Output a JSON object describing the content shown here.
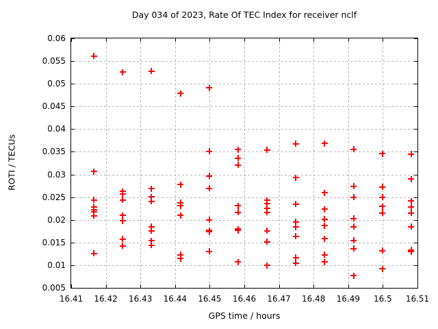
{
  "chart_data": {
    "type": "scatter",
    "title": "Day 034 of 2023, Rate Of TEC Index for receiver nclf",
    "xlabel": "GPS time / hours",
    "ylabel": "ROTI / TECUs",
    "xlim": [
      16.41,
      16.51
    ],
    "ylim": [
      0.005,
      0.06
    ],
    "x_ticks": [
      "16.41",
      "16.42",
      "16.43",
      "16.44",
      "16.45",
      "16.46",
      "16.47",
      "16.48",
      "16.49",
      "16.5",
      "16.51"
    ],
    "y_ticks": [
      "0.005",
      "0.01",
      "0.015",
      "0.02",
      "0.025",
      "0.03",
      "0.035",
      "0.04",
      "0.045",
      "0.05",
      "0.055",
      "0.06"
    ],
    "grid": true,
    "legend": false,
    "marker": "plus",
    "marker_color": "#ff0000",
    "grid_color": "#b4b4b4",
    "axis_color": "#000000",
    "background_color": "#ffffff",
    "series_name": "ROTI",
    "points": [
      [
        16.4167,
        0.056
      ],
      [
        16.4167,
        0.0306
      ],
      [
        16.4167,
        0.0243
      ],
      [
        16.4167,
        0.0228
      ],
      [
        16.4167,
        0.0221
      ],
      [
        16.4167,
        0.0217
      ],
      [
        16.4167,
        0.0208
      ],
      [
        16.4167,
        0.0125
      ],
      [
        16.425,
        0.0525
      ],
      [
        16.425,
        0.0262
      ],
      [
        16.425,
        0.0257
      ],
      [
        16.425,
        0.0243
      ],
      [
        16.425,
        0.0209
      ],
      [
        16.425,
        0.0197
      ],
      [
        16.425,
        0.0157
      ],
      [
        16.425,
        0.0142
      ],
      [
        16.4333,
        0.0527
      ],
      [
        16.4333,
        0.0268
      ],
      [
        16.4333,
        0.025
      ],
      [
        16.4333,
        0.024
      ],
      [
        16.4333,
        0.0184
      ],
      [
        16.4333,
        0.0175
      ],
      [
        16.4333,
        0.0153
      ],
      [
        16.4333,
        0.0143
      ],
      [
        16.4417,
        0.0478
      ],
      [
        16.4417,
        0.0277
      ],
      [
        16.4417,
        0.0237
      ],
      [
        16.4417,
        0.023
      ],
      [
        16.4417,
        0.0209
      ],
      [
        16.4417,
        0.0122
      ],
      [
        16.4417,
        0.0114
      ],
      [
        16.45,
        0.049
      ],
      [
        16.45,
        0.035
      ],
      [
        16.45,
        0.0296
      ],
      [
        16.45,
        0.0269
      ],
      [
        16.45,
        0.0199
      ],
      [
        16.45,
        0.0176
      ],
      [
        16.45,
        0.0173
      ],
      [
        16.45,
        0.013
      ],
      [
        16.4583,
        0.0354
      ],
      [
        16.4583,
        0.0335
      ],
      [
        16.4583,
        0.032
      ],
      [
        16.4583,
        0.023
      ],
      [
        16.4583,
        0.0216
      ],
      [
        16.4583,
        0.0179
      ],
      [
        16.4583,
        0.0176
      ],
      [
        16.4583,
        0.0106
      ],
      [
        16.4667,
        0.0353
      ],
      [
        16.4667,
        0.0242
      ],
      [
        16.4667,
        0.0235
      ],
      [
        16.4667,
        0.0224
      ],
      [
        16.4667,
        0.0216
      ],
      [
        16.4667,
        0.0175
      ],
      [
        16.4667,
        0.0151
      ],
      [
        16.4667,
        0.0099
      ],
      [
        16.475,
        0.0367
      ],
      [
        16.475,
        0.0292
      ],
      [
        16.475,
        0.0234
      ],
      [
        16.475,
        0.0195
      ],
      [
        16.475,
        0.0183
      ],
      [
        16.475,
        0.0163
      ],
      [
        16.475,
        0.0116
      ],
      [
        16.475,
        0.0104
      ],
      [
        16.4833,
        0.0368
      ],
      [
        16.4833,
        0.0259
      ],
      [
        16.4833,
        0.0223
      ],
      [
        16.4833,
        0.0201
      ],
      [
        16.4833,
        0.0186
      ],
      [
        16.4833,
        0.0158
      ],
      [
        16.4833,
        0.0122
      ],
      [
        16.4833,
        0.0106
      ],
      [
        16.4917,
        0.0355
      ],
      [
        16.4917,
        0.0273
      ],
      [
        16.4917,
        0.0249
      ],
      [
        16.4917,
        0.0202
      ],
      [
        16.4917,
        0.0184
      ],
      [
        16.4917,
        0.0154
      ],
      [
        16.4917,
        0.0136
      ],
      [
        16.4917,
        0.0076
      ],
      [
        16.5,
        0.0345
      ],
      [
        16.5,
        0.0272
      ],
      [
        16.5,
        0.0249
      ],
      [
        16.5,
        0.0229
      ],
      [
        16.5,
        0.0214
      ],
      [
        16.5,
        0.0131
      ],
      [
        16.5,
        0.0091
      ],
      [
        16.5083,
        0.0344
      ],
      [
        16.5083,
        0.0289
      ],
      [
        16.5083,
        0.0241
      ],
      [
        16.5083,
        0.0227
      ],
      [
        16.5083,
        0.0214
      ],
      [
        16.5083,
        0.0184
      ],
      [
        16.5083,
        0.0133
      ],
      [
        16.5083,
        0.0129
      ]
    ]
  }
}
